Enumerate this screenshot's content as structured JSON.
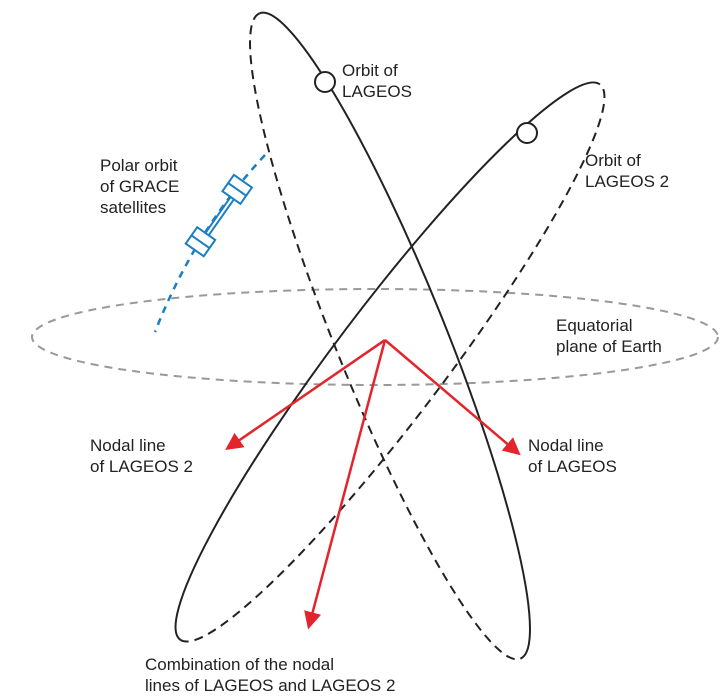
{
  "labels": {
    "orbit_lageos": [
      "Orbit of",
      "LAGEOS"
    ],
    "orbit_lageos2": [
      "Orbit of",
      "LAGEOS 2"
    ],
    "grace": [
      "Polar orbit",
      "of GRACE",
      "satellites"
    ],
    "equatorial": [
      "Equatorial",
      "plane of Earth"
    ],
    "nodal_lageos2": [
      "Nodal line",
      "of LAGEOS 2"
    ],
    "nodal_lageos": [
      "Nodal line",
      "of LAGEOS"
    ],
    "combination": [
      "Combination of the nodal",
      "lines of LAGEOS and LAGEOS 2"
    ]
  }
}
